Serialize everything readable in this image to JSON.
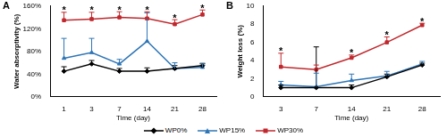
{
  "chart_data": [
    {
      "type": "line",
      "title": "A",
      "legend": "bottom",
      "grid": false,
      "categories": [
        "1",
        "3",
        "7",
        "14",
        "21",
        "28"
      ],
      "x_label": "Time (day)",
      "y_label": "Water absorptivity (%)",
      "ylim": [
        0,
        160
      ],
      "yticks": [
        {
          "value": 0,
          "label": "0%"
        },
        {
          "value": 40,
          "label": "40%"
        },
        {
          "value": 80,
          "label": "80%"
        },
        {
          "value": 120,
          "label": "120%"
        },
        {
          "value": 160,
          "label": "160%"
        }
      ],
      "series": [
        {
          "name": "WP0%",
          "color": "#000000",
          "marker": "diamond",
          "values": [
            45,
            58,
            45,
            45,
            50,
            55
          ],
          "errors": [
            8,
            6,
            5,
            6,
            5,
            4
          ]
        },
        {
          "name": "WP15%",
          "color": "#2e75b6",
          "marker": "triangle",
          "values": [
            68,
            78,
            58,
            98,
            50,
            52
          ],
          "errors": [
            35,
            25,
            8,
            50,
            10,
            6
          ]
        },
        {
          "name": "WP30%",
          "color": "#c0282d",
          "marker": "square",
          "values": [
            135,
            137,
            140,
            138,
            128,
            145
          ],
          "errors": [
            14,
            12,
            10,
            12,
            8,
            8
          ]
        }
      ],
      "annotations": [
        {
          "category": "1",
          "text": "*"
        },
        {
          "category": "3",
          "text": "*"
        },
        {
          "category": "7",
          "text": "*"
        },
        {
          "category": "14",
          "text": "*"
        },
        {
          "category": "21",
          "text": "*"
        },
        {
          "category": "28",
          "text": "*"
        }
      ]
    },
    {
      "type": "line",
      "title": "B",
      "grid": false,
      "categories": [
        "3",
        "7",
        "14",
        "21",
        "28"
      ],
      "x_label": "Time (day)",
      "y_label": "Weight loss (%)",
      "ylim": [
        0,
        10
      ],
      "yticks": [
        0,
        2,
        4,
        6,
        8,
        10
      ],
      "series": [
        {
          "name": "WP0%",
          "color": "#000000",
          "marker": "diamond",
          "values": [
            1.0,
            1.0,
            1.0,
            2.2,
            3.5
          ],
          "errors": [
            0.3,
            4.5,
            0.3,
            0.3,
            0.2
          ]
        },
        {
          "name": "WP15%",
          "color": "#2e75b6",
          "marker": "triangle",
          "values": [
            1.3,
            1.1,
            1.8,
            2.3,
            3.6
          ],
          "errors": [
            0.4,
            1.5,
            0.7,
            0.5,
            0.3
          ]
        },
        {
          "name": "WP30%",
          "color": "#c0282d",
          "marker": "square",
          "values": [
            3.3,
            3.0,
            4.3,
            6.0,
            7.9
          ],
          "errors": [
            1.5,
            0.5,
            0.3,
            0.6,
            0.2
          ]
        }
      ],
      "annotations": [
        {
          "category": "3",
          "text": "*"
        },
        {
          "category": "14",
          "text": "*"
        },
        {
          "category": "21",
          "text": "*"
        },
        {
          "category": "28",
          "text": "*"
        }
      ]
    }
  ]
}
